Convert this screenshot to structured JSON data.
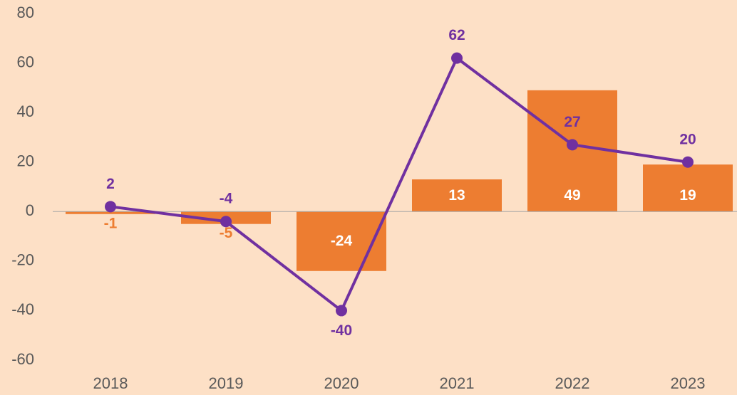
{
  "chart_data": {
    "type": "combo",
    "categories": [
      "2018",
      "2019",
      "2020",
      "2021",
      "2022",
      "2023"
    ],
    "series": [
      {
        "type": "bar",
        "color": "#ed7d31",
        "values": [
          -1,
          -5,
          -24,
          13,
          49,
          19
        ]
      },
      {
        "type": "line",
        "color": "#7030a0",
        "values": [
          2,
          -4,
          -40,
          62,
          27,
          20
        ]
      }
    ],
    "ylim": [
      -60,
      80
    ],
    "yticks": [
      -60,
      -40,
      -20,
      0,
      20,
      40,
      60,
      80
    ],
    "background": "#fde0c6"
  }
}
